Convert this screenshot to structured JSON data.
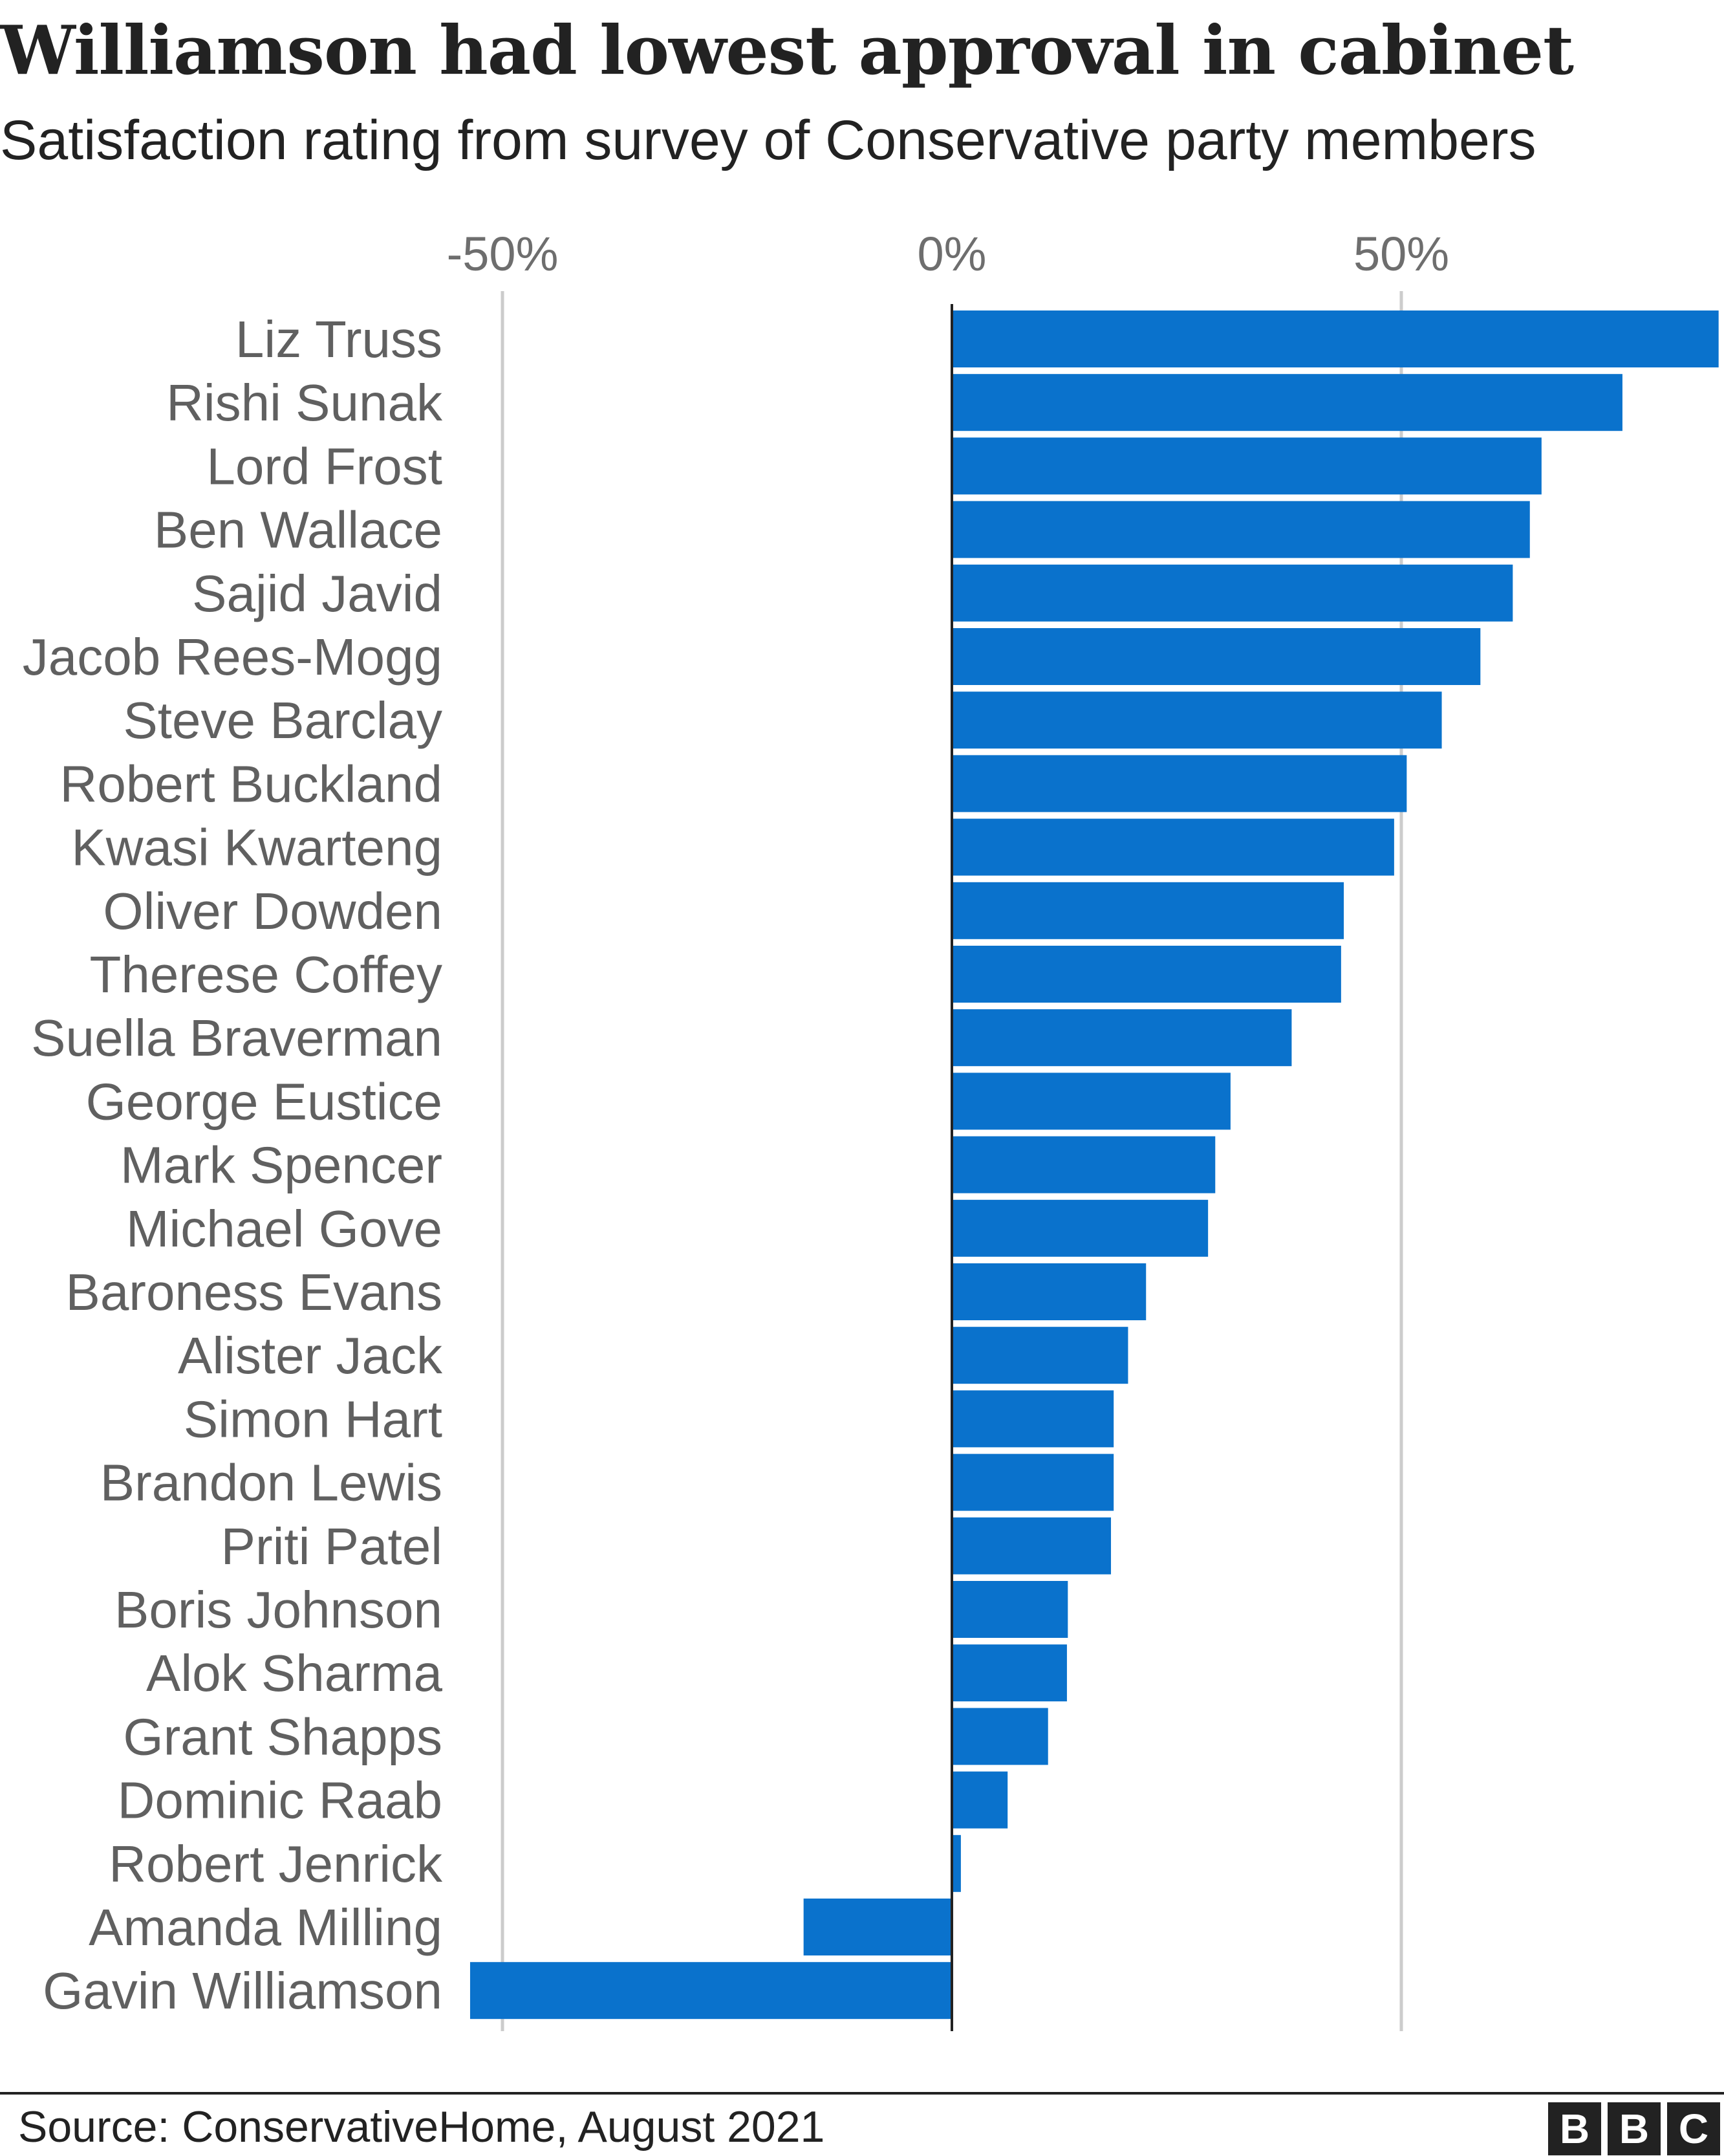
{
  "title": "Williamson had lowest approval in cabinet",
  "subtitle": "Satisfaction rating from survey of Conservative party members",
  "source": "Source: ConservativeHome, August 2021",
  "logo": [
    "B",
    "B",
    "C"
  ],
  "colors": {
    "bar": "#0a72cc",
    "grid": "#cccccc",
    "zero_line": "#222222"
  },
  "chart_data": {
    "type": "bar",
    "orientation": "horizontal",
    "xlim": [
      -50,
      85
    ],
    "ticks": [
      -50,
      0,
      50
    ],
    "tick_labels": [
      "-50%",
      "0%",
      "50%"
    ],
    "grid": true,
    "categories": [
      "Liz Truss",
      "Rishi Sunak",
      "Lord Frost",
      "Ben Wallace",
      "Sajid Javid",
      "Jacob Rees-Mogg",
      "Steve Barclay",
      "Robert Buckland",
      "Kwasi Kwarteng",
      "Oliver Dowden",
      "Therese Coffey",
      "Suella Braverman",
      "George Eustice",
      "Mark Spencer",
      "Michael Gove",
      "Baroness Evans",
      "Alister Jack",
      "Simon Hart",
      "Brandon Lewis",
      "Priti Patel",
      "Boris Johnson",
      "Alok Sharma",
      "Grant Shapps",
      "Dominic Raab",
      "Robert Jenrick",
      "Amanda Milling",
      "Gavin Williamson"
    ],
    "values": [
      85.3,
      74.6,
      65.6,
      64.3,
      62.4,
      58.8,
      54.5,
      50.6,
      49.2,
      43.6,
      43.3,
      37.8,
      31.0,
      29.3,
      28.5,
      21.6,
      19.6,
      18.0,
      18.0,
      17.7,
      12.9,
      12.8,
      10.7,
      6.2,
      1.0,
      -16.5,
      -53.6
    ]
  }
}
